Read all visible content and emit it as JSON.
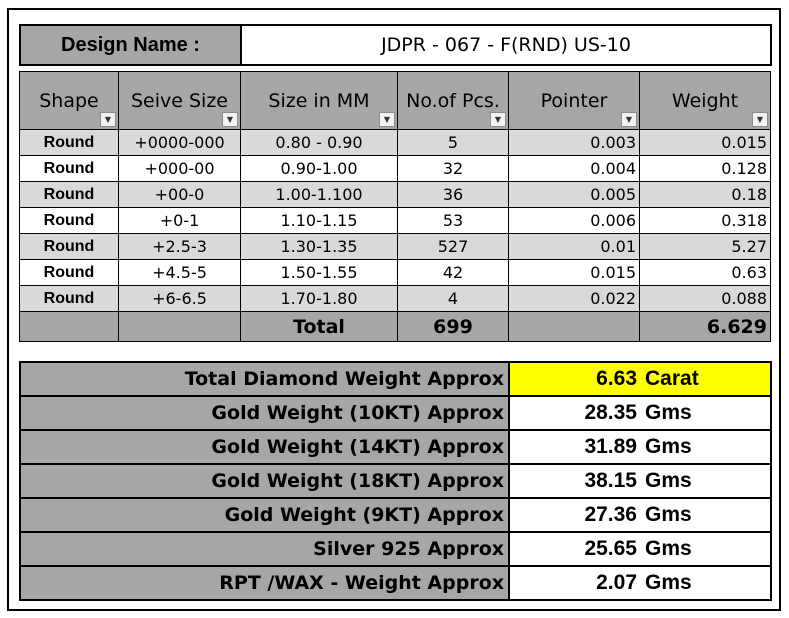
{
  "design": {
    "label": "Design Name :",
    "value": "JDPR - 067 - F(RND) US-10"
  },
  "table": {
    "headers": [
      "Shape",
      "Seive Size",
      "Size in MM",
      "No.of Pcs.",
      "Pointer",
      "Weight"
    ],
    "rows": [
      [
        "Round",
        "+0000-000",
        "0.80 - 0.90",
        "5",
        "0.003",
        "0.015"
      ],
      [
        "Round",
        "+000-00",
        "0.90-1.00",
        "32",
        "0.004",
        "0.128"
      ],
      [
        "Round",
        "+00-0",
        "1.00-1.100",
        "36",
        "0.005",
        "0.18"
      ],
      [
        "Round",
        "+0-1",
        "1.10-1.15",
        "53",
        "0.006",
        "0.318"
      ],
      [
        "Round",
        "+2.5-3",
        "1.30-1.35",
        "527",
        "0.01",
        "5.27"
      ],
      [
        "Round",
        "+4.5-5",
        "1.50-1.55",
        "42",
        "0.015",
        "0.63"
      ],
      [
        "Round",
        "+6-6.5",
        "1.70-1.80",
        "4",
        "0.022",
        "0.088"
      ]
    ],
    "total": {
      "label": "Total",
      "pcs": "699",
      "weight": "6.629"
    }
  },
  "summary": [
    {
      "label": "Total Diamond Weight Approx",
      "value": "6.63",
      "unit": "Carat",
      "highlight": true
    },
    {
      "label": "Gold Weight (10KT) Approx",
      "value": "28.35",
      "unit": "Gms"
    },
    {
      "label": "Gold Weight (14KT) Approx",
      "value": "31.89",
      "unit": "Gms"
    },
    {
      "label": "Gold Weight (18KT) Approx",
      "value": "38.15",
      "unit": "Gms"
    },
    {
      "label": "Gold Weight (9KT) Approx",
      "value": "27.36",
      "unit": "Gms"
    },
    {
      "label": "Silver 925 Approx",
      "value": "25.65",
      "unit": "Gms"
    },
    {
      "label": "RPT /WAX - Weight Approx",
      "value": "2.07",
      "unit": "Gms"
    }
  ],
  "colors": {
    "header_gray": "#a6a6a6",
    "row_alt": "#d9d9d9",
    "highlight": "#ffff00"
  },
  "icons": {
    "filter_dropdown": "chevron-down-icon",
    "filter_active": "filter-icon"
  }
}
